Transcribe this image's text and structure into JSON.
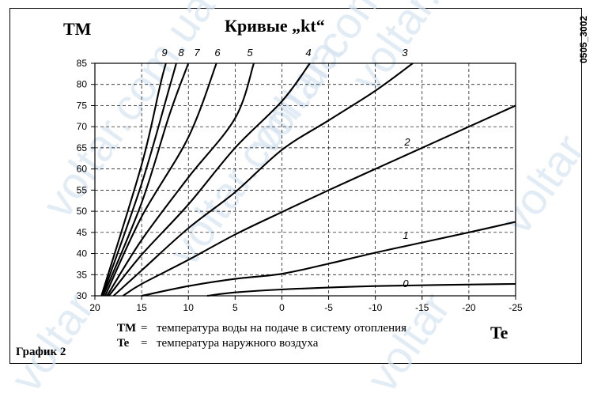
{
  "header": {
    "y_title": "TM",
    "title": "Кривые „kt“",
    "code": "0505_3002"
  },
  "x_title": "Te",
  "legend": [
    {
      "key": "TM",
      "sep": "=",
      "text": "температура воды на подаче в систему отопления"
    },
    {
      "key": "Te",
      "sep": "=",
      "text": "температура наружного воздуха"
    }
  ],
  "footer_label": "График 2",
  "watermarks": [
    "voltar.com.ua",
    "voltar.com.ua",
    "voltar.com.ua",
    "voltar.com.ua",
    "voltar",
    "voltar",
    "voltar"
  ],
  "chart_data": {
    "type": "line",
    "title": "Кривые „kt“",
    "ylabel": "TM",
    "xlabel": "Te",
    "xlim": [
      20,
      -25
    ],
    "ylim": [
      30,
      85
    ],
    "x_ticks": [
      20,
      15,
      10,
      5,
      0,
      -5,
      -10,
      -15,
      -20,
      -25
    ],
    "y_ticks": [
      30,
      35,
      40,
      45,
      50,
      55,
      60,
      65,
      70,
      75,
      80,
      85
    ],
    "grid": true,
    "colors": {
      "line": "#000000",
      "grid": "#000000",
      "watermark": "#d6e4f2"
    },
    "series": [
      {
        "name": "0",
        "points": [
          [
            8,
            30
          ],
          [
            5,
            30.8
          ],
          [
            0,
            31.5
          ],
          [
            -10,
            32.3
          ],
          [
            -25,
            32.8
          ]
        ]
      },
      {
        "name": "1",
        "points": [
          [
            15,
            30
          ],
          [
            10,
            32.3
          ],
          [
            5,
            34
          ],
          [
            0,
            35.2
          ],
          [
            -5,
            37.6
          ],
          [
            -10,
            40.2
          ],
          [
            -15,
            42.6
          ],
          [
            -20,
            45
          ],
          [
            -25,
            47.5
          ]
        ]
      },
      {
        "name": "2",
        "points": [
          [
            17,
            30
          ],
          [
            15,
            32.8
          ],
          [
            10,
            38.5
          ],
          [
            5,
            44.5
          ],
          [
            0,
            49.8
          ],
          [
            -5,
            55
          ],
          [
            -10,
            60
          ],
          [
            -15,
            65
          ],
          [
            -20,
            70
          ],
          [
            -25,
            75
          ]
        ]
      },
      {
        "name": "3",
        "points": [
          [
            18,
            30
          ],
          [
            15,
            36
          ],
          [
            10,
            46
          ],
          [
            5,
            54.5
          ],
          [
            0,
            64.5
          ],
          [
            -5,
            71.5
          ],
          [
            -10,
            78.5
          ],
          [
            -14,
            85
          ]
        ]
      },
      {
        "name": "4",
        "points": [
          [
            18.5,
            30
          ],
          [
            15,
            39.7
          ],
          [
            10,
            51.6
          ],
          [
            5,
            65
          ],
          [
            0,
            76
          ],
          [
            -3,
            85
          ]
        ]
      },
      {
        "name": "5",
        "points": [
          [
            18.7,
            30
          ],
          [
            15,
            43.2
          ],
          [
            10,
            58
          ],
          [
            5,
            72
          ],
          [
            3,
            85
          ]
        ]
      },
      {
        "name": "6",
        "points": [
          [
            18.9,
            30
          ],
          [
            15,
            48.7
          ],
          [
            10,
            67.5
          ],
          [
            7,
            85
          ]
        ]
      },
      {
        "name": "7",
        "points": [
          [
            19.1,
            30
          ],
          [
            15,
            52
          ],
          [
            12,
            73
          ],
          [
            10,
            85
          ]
        ]
      },
      {
        "name": "8",
        "points": [
          [
            19.2,
            30
          ],
          [
            15,
            56.5
          ],
          [
            12,
            79.5
          ],
          [
            11.3,
            85
          ]
        ]
      },
      {
        "name": "9",
        "points": [
          [
            19.3,
            30
          ],
          [
            15,
            61
          ],
          [
            13,
            80
          ],
          [
            12.4,
            85
          ]
        ]
      }
    ]
  }
}
